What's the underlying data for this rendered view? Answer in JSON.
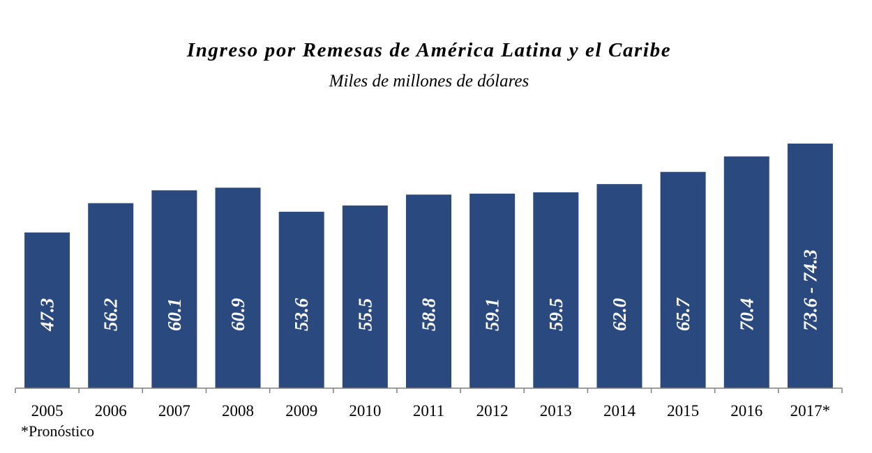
{
  "chart_data": {
    "type": "bar",
    "title": "Ingreso por Remesas de América Latina y el Caribe",
    "subtitle": "Miles de millones de dólares",
    "xlabel": "",
    "ylabel": "",
    "ylim": [
      0,
      76
    ],
    "grid": false,
    "categories": [
      "2005",
      "2006",
      "2007",
      "2008",
      "2009",
      "2010",
      "2011",
      "2012",
      "2013",
      "2014",
      "2015",
      "2016",
      "2017*"
    ],
    "values": [
      47.3,
      56.2,
      60.1,
      60.9,
      53.6,
      55.5,
      58.8,
      59.1,
      59.5,
      62.0,
      65.7,
      70.4,
      74.3
    ],
    "data_labels": [
      "47.3",
      "56.2",
      "60.1",
      "60.9",
      "53.6",
      "55.5",
      "58.8",
      "59.1",
      "59.5",
      "62.0",
      "65.7",
      "70.4",
      "73.6 - 74.3"
    ],
    "bar_color": "#2a4a7f",
    "label_color": "#ffffff",
    "footnote": "*Pronóstico"
  }
}
